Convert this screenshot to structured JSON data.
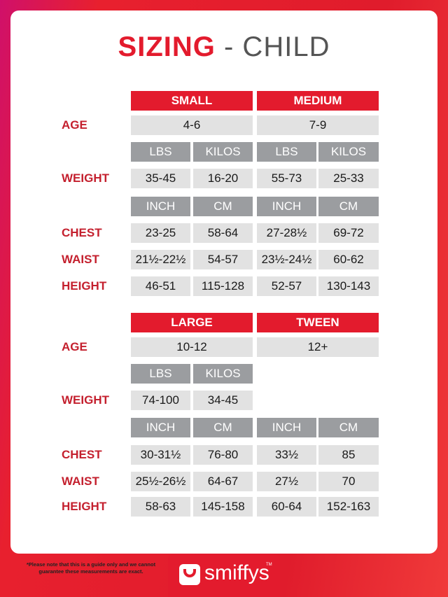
{
  "title": {
    "bold": "SIZING",
    "rest": "- CHILD"
  },
  "sections": [
    {
      "sizes": [
        "SMALL",
        "MEDIUM"
      ],
      "age": {
        "label": "AGE",
        "values": [
          "4-6",
          "7-9"
        ]
      },
      "weight_units": [
        "LBS",
        "KILOS",
        "LBS",
        "KILOS"
      ],
      "weight": {
        "label": "WEIGHT",
        "values": [
          "35-45",
          "16-20",
          "55-73",
          "25-33"
        ]
      },
      "measure_units": [
        "INCH",
        "CM",
        "INCH",
        "CM"
      ],
      "rows": [
        {
          "label": "CHEST",
          "values": [
            "23-25",
            "58-64",
            "27-28½",
            "69-72"
          ]
        },
        {
          "label": "WAIST",
          "values": [
            "21½-22½",
            "54-57",
            "23½-24½",
            "60-62"
          ]
        },
        {
          "label": "HEIGHT",
          "values": [
            "46-51",
            "115-128",
            "52-57",
            "130-143"
          ]
        }
      ]
    },
    {
      "sizes": [
        "LARGE",
        "TWEEN"
      ],
      "age": {
        "label": "AGE",
        "values": [
          "10-12",
          "12+"
        ]
      },
      "weight_units": [
        "LBS",
        "KILOS"
      ],
      "weight": {
        "label": "WEIGHT",
        "values": [
          "74-100",
          "34-45"
        ]
      },
      "measure_units": [
        "INCH",
        "CM",
        "INCH",
        "CM"
      ],
      "rows": [
        {
          "label": "CHEST",
          "values": [
            "30-31½",
            "76-80",
            "33½",
            "85"
          ]
        },
        {
          "label": "WAIST",
          "values": [
            "25½-26½",
            "64-67",
            "27½",
            "70"
          ]
        },
        {
          "label": "HEIGHT",
          "values": [
            "58-63",
            "145-158",
            "60-64",
            "152-163"
          ]
        }
      ]
    }
  ],
  "note": [
    "*Please note that this is a guide only and we cannot",
    "guarantee these measurements are exact."
  ],
  "logo": {
    "name": "smiffys",
    "mark": "TM"
  }
}
